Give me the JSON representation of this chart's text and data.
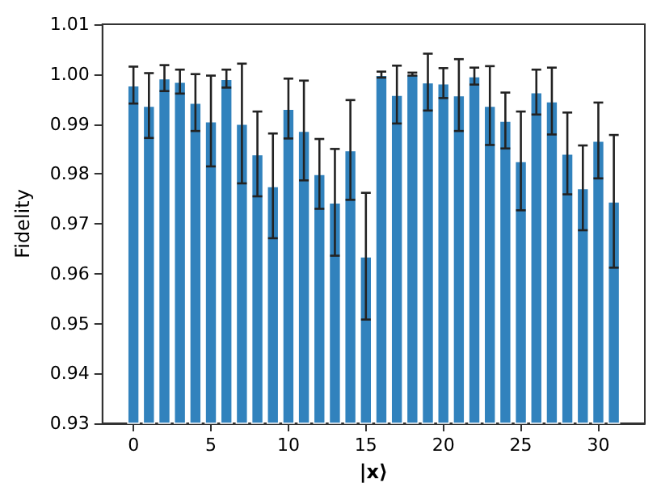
{
  "chart_data": {
    "type": "bar",
    "xlabel": "|x⟩",
    "ylabel": "Fidelity",
    "x": [
      0,
      1,
      2,
      3,
      4,
      5,
      6,
      7,
      8,
      9,
      10,
      11,
      12,
      13,
      14,
      15,
      16,
      17,
      18,
      19,
      20,
      21,
      22,
      23,
      24,
      25,
      26,
      27,
      28,
      29,
      30,
      31
    ],
    "values": [
      0.9978,
      0.9937,
      0.9992,
      0.9985,
      0.9943,
      0.9906,
      0.9991,
      0.9901,
      0.984,
      0.9776,
      0.9931,
      0.9887,
      0.98,
      0.9743,
      0.9848,
      0.9635,
      0.9999,
      0.9959,
      1.0,
      0.9984,
      0.9982,
      0.9958,
      0.9996,
      0.9937,
      0.9907,
      0.9826,
      0.9964,
      0.9946,
      0.9841,
      0.9772,
      0.9867,
      0.9745
    ],
    "errors": [
      0.0037,
      0.0065,
      0.0026,
      0.0024,
      0.0057,
      0.0091,
      0.0018,
      0.012,
      0.0085,
      0.0105,
      0.006,
      0.01,
      0.007,
      0.0107,
      0.01,
      0.0127,
      0.0006,
      0.0058,
      0.0003,
      0.0057,
      0.003,
      0.0072,
      0.0017,
      0.0079,
      0.0056,
      0.0099,
      0.0045,
      0.0067,
      0.0082,
      0.0085,
      0.0076,
      0.0133
    ],
    "color": "#3182bd",
    "xlim": [
      -2,
      33
    ],
    "xticks": [
      0,
      5,
      10,
      15,
      20,
      25,
      30
    ],
    "ylim": [
      0.93,
      1.01
    ],
    "yticks": [
      0.93,
      0.94,
      0.95,
      0.96,
      0.97,
      0.98,
      0.99,
      {
        "value": 1.0,
        "label": "1.00"
      },
      1.01
    ],
    "grid": false
  }
}
